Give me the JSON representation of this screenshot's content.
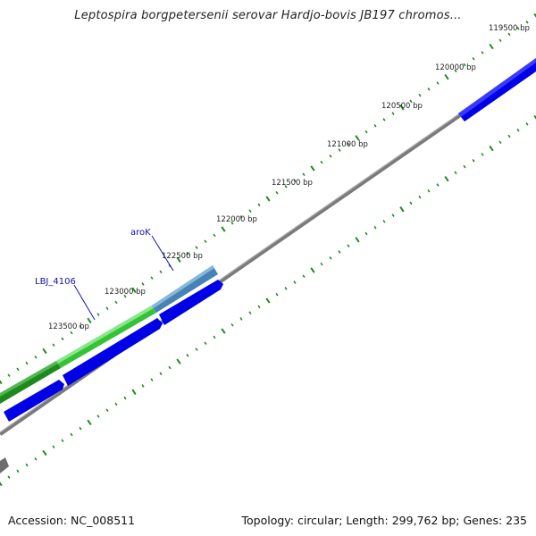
{
  "title": "Leptospira borgpetersenii serovar Hardjo-bovis JB197 chromos...",
  "footer": {
    "accession": "Accession: NC_008511",
    "summary": "Topology: circular; Length: 299,762 bp; Genes: 235"
  },
  "ticks": [
    {
      "label": "119500 bp"
    },
    {
      "label": "120000 bp"
    },
    {
      "label": "120500 bp"
    },
    {
      "label": "121000 bp"
    },
    {
      "label": "121500 bp"
    },
    {
      "label": "122000 bp"
    },
    {
      "label": "122500 bp"
    },
    {
      "label": "123000 bp"
    },
    {
      "label": "123500 bp"
    }
  ],
  "gene_labels": [
    {
      "name": "aroK"
    },
    {
      "name": "LBJ_4106"
    }
  ],
  "colors": {
    "backbone": "#808080",
    "cds_forward": "#0000e6",
    "gene_light_green": "#3fcf3f",
    "gene_dark_green": "#1e8a1e",
    "gene_steel_blue": "#4682b4",
    "tick": "#1e8a1e",
    "gene_label": "#1010a0"
  }
}
